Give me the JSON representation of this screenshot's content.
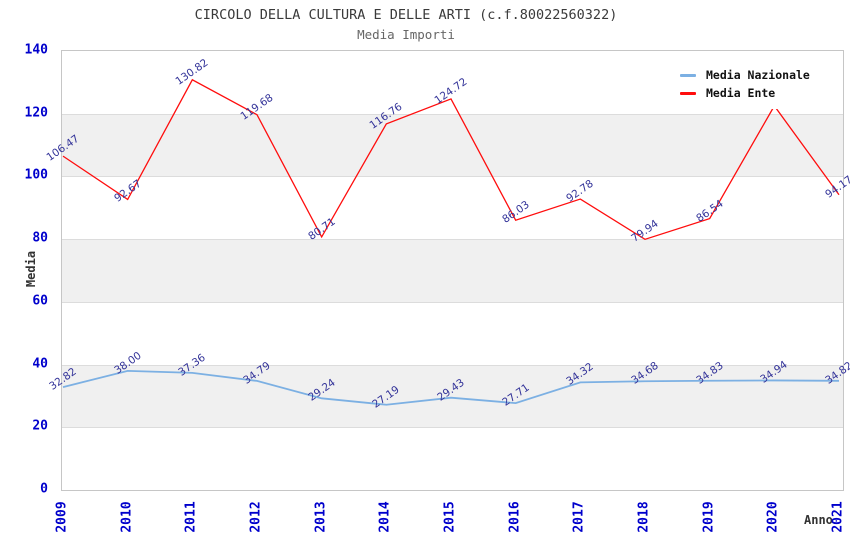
{
  "title": "CIRCOLO DELLA CULTURA E DELLE ARTI (c.f.80022560322)",
  "subtitle": "Media Importi",
  "y_axis_title": "Media",
  "x_axis_title": "Anno",
  "legend": {
    "items": [
      {
        "label": "Media Nazionale",
        "color": "#7cb0e3"
      },
      {
        "label": "Media Ente",
        "color": "#ff0d0d"
      }
    ]
  },
  "colors": {
    "tick_label": "#0000cc",
    "point_label": "#333399",
    "band_fill": "#f0f0f0",
    "grid_line": "#dcdcdc",
    "plot_border": "#c6c6c6"
  },
  "chart_data": {
    "type": "line",
    "title": "CIRCOLO DELLA CULTURA E DELLE ARTI (c.f.80022560322)",
    "subtitle": "Media Importi",
    "xlabel": "Anno",
    "ylabel": "Media",
    "categories": [
      "2009",
      "2010",
      "2011",
      "2012",
      "2013",
      "2014",
      "2015",
      "2016",
      "2017",
      "2018",
      "2019",
      "2020",
      "2021"
    ],
    "series": [
      {
        "name": "Media Nazionale",
        "color": "#7cb0e3",
        "values": [
          32.82,
          38.0,
          37.36,
          34.79,
          29.24,
          27.19,
          29.43,
          27.71,
          34.32,
          34.68,
          34.83,
          34.94,
          34.82
        ],
        "point_labels": [
          "32.82",
          "38.00",
          "37.36",
          "34.79",
          "29.24",
          "27.19",
          "29.43",
          "27.71",
          "34.32",
          "34.68",
          "34.83",
          "34.94",
          "34.82"
        ]
      },
      {
        "name": "Media Ente",
        "color": "#ff0d0d",
        "values": [
          106.47,
          92.67,
          130.82,
          119.68,
          80.71,
          116.76,
          124.72,
          86.03,
          92.78,
          79.94,
          86.54,
          122.5,
          94.17
        ],
        "point_labels": [
          "106.47",
          "92.67",
          "130.82",
          "119.68",
          "80.71",
          "116.76",
          "124.72",
          "86.03",
          "92.78",
          "79.94",
          "86.54",
          "",
          "94.17"
        ]
      }
    ],
    "ylim": [
      0,
      140
    ],
    "y_ticks": [
      0,
      20,
      40,
      60,
      80,
      100,
      120,
      140
    ],
    "grid": "horizontal-bands-alternating",
    "legend_position": "top-right-inside",
    "markers": false
  }
}
